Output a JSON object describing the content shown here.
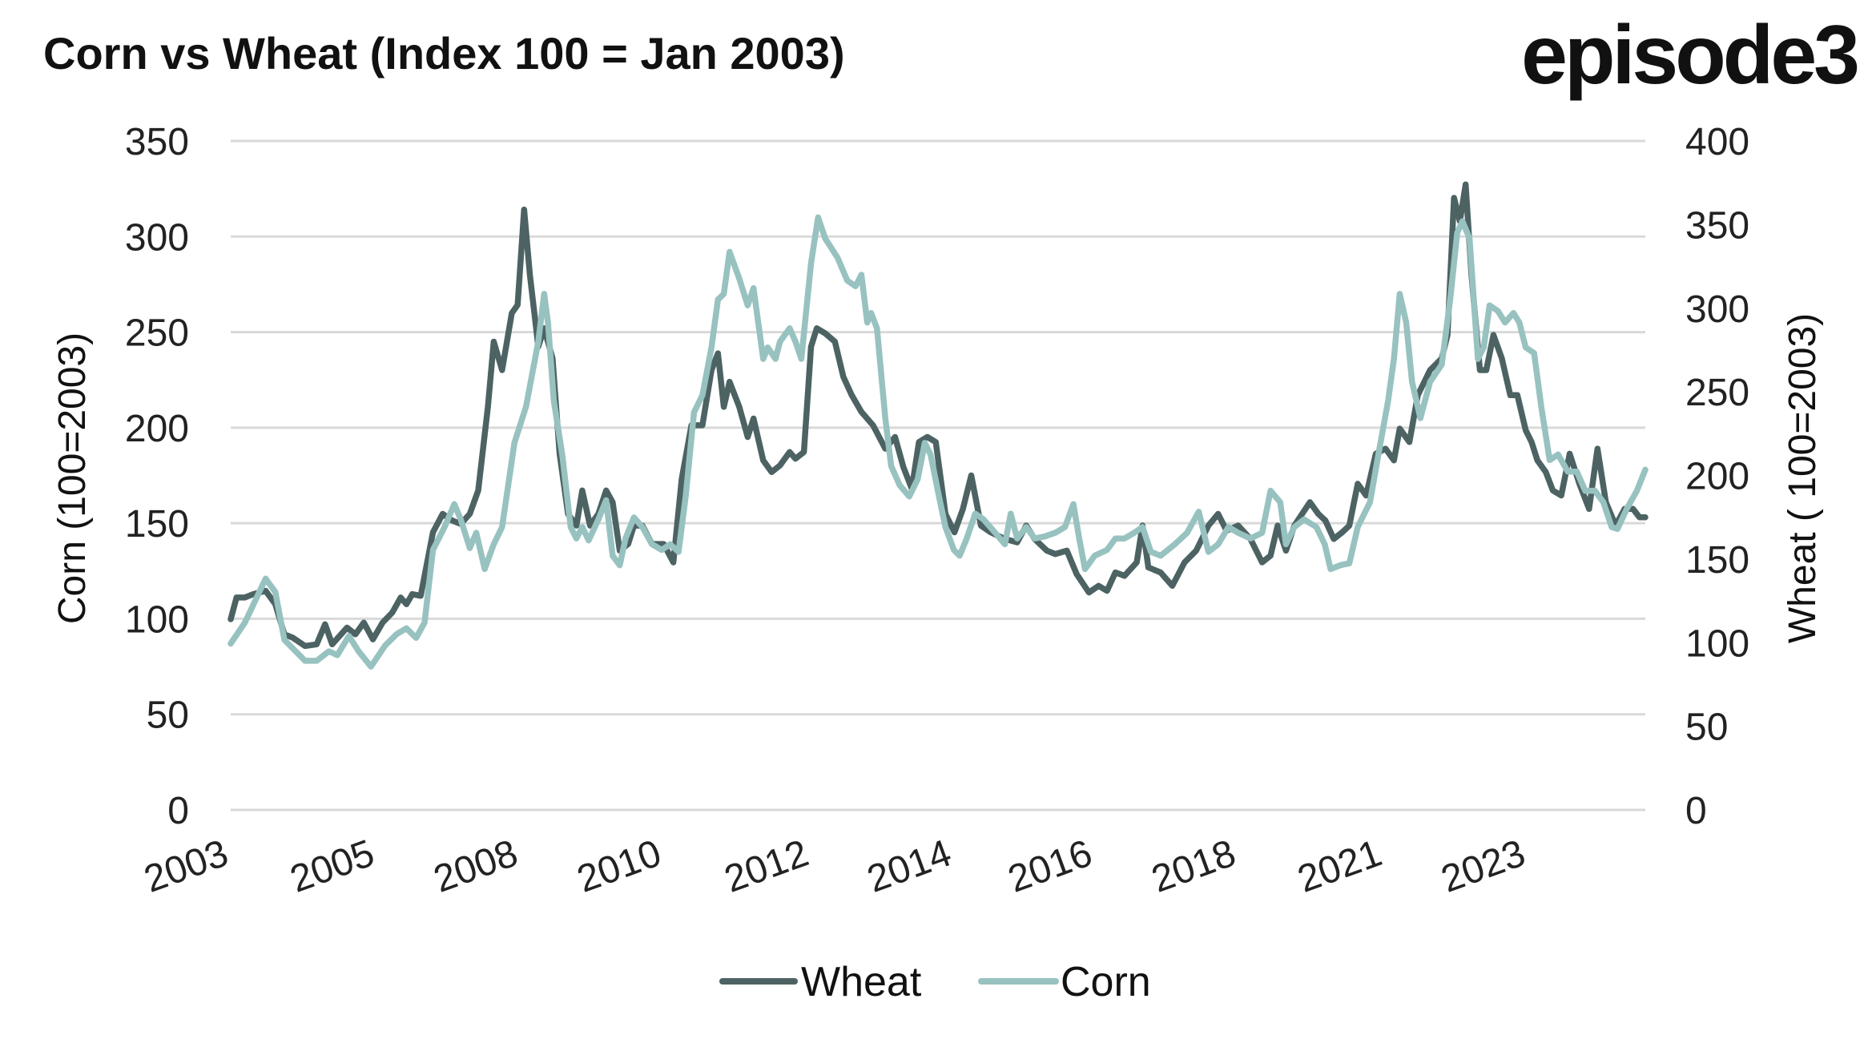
{
  "chart_data": {
    "type": "line",
    "title": "Corn vs Wheat (Index 100 = Jan 2003)",
    "logo": "episode3",
    "ylabel_left": "Corn (100=2003)",
    "ylabel_right": "Wheat ( 100=2003)",
    "ylim_left": [
      0,
      350
    ],
    "ylim_right": [
      0,
      400
    ],
    "yticks_left": [
      0,
      50,
      100,
      150,
      200,
      250,
      300,
      350
    ],
    "yticks_right": [
      0,
      50,
      100,
      150,
      200,
      250,
      300,
      350,
      400
    ],
    "xlim": [
      0,
      21.89
    ],
    "x_unit": "years since Jan 2003 (approx.)",
    "x_ticks": [
      {
        "x": 0,
        "label": "2003"
      },
      {
        "x": 2.26,
        "label": "2005"
      },
      {
        "x": 4.48,
        "label": "2008"
      },
      {
        "x": 6.7,
        "label": "2010"
      },
      {
        "x": 8.98,
        "label": "2012"
      },
      {
        "x": 11.19,
        "label": "2014"
      },
      {
        "x": 13.37,
        "label": "2016"
      },
      {
        "x": 15.59,
        "label": "2018"
      },
      {
        "x": 17.85,
        "label": "2021"
      },
      {
        "x": 20.07,
        "label": "2023"
      }
    ],
    "grid": true,
    "legend_position": "bottom-center",
    "series": [
      {
        "name": "Wheat",
        "axis": "right",
        "color": "#4d6363",
        "x": [
          0,
          0.09,
          0.22,
          0.35,
          0.54,
          0.69,
          0.83,
          0.96,
          1.15,
          1.33,
          1.46,
          1.57,
          1.8,
          1.93,
          2.06,
          2.2,
          2.35,
          2.5,
          2.63,
          2.72,
          2.81,
          2.94,
          3.13,
          3.28,
          3.43,
          3.56,
          3.7,
          3.83,
          3.98,
          4.07,
          4.2,
          4.35,
          4.44,
          4.54,
          4.63,
          4.76,
          4.85,
          4.98,
          5.09,
          5.22,
          5.35,
          5.44,
          5.56,
          5.69,
          5.81,
          5.91,
          6.02,
          6.15,
          6.24,
          6.37,
          6.52,
          6.7,
          6.85,
          6.98,
          7.13,
          7.3,
          7.44,
          7.54,
          7.63,
          7.72,
          7.87,
          8.0,
          8.09,
          8.24,
          8.37,
          8.5,
          8.65,
          8.74,
          8.87,
          8.98,
          9.07,
          9.2,
          9.35,
          9.48,
          9.61,
          9.76,
          9.94,
          10.13,
          10.28,
          10.41,
          10.54,
          10.65,
          10.78,
          10.91,
          11.06,
          11.2,
          11.33,
          11.46,
          11.61,
          11.76,
          11.98,
          12.17,
          12.31,
          12.44,
          12.63,
          12.76,
          12.94,
          13.09,
          13.28,
          13.43,
          13.56,
          13.69,
          13.83,
          14.02,
          14.11,
          14.2,
          14.39,
          14.57,
          14.76,
          14.94,
          15.13,
          15.28,
          15.41,
          15.59,
          15.78,
          15.96,
          16.09,
          16.2,
          16.33,
          16.46,
          16.7,
          16.83,
          16.94,
          17.07,
          17.2,
          17.31,
          17.44,
          17.57,
          17.72,
          17.87,
          18.0,
          18.09,
          18.24,
          18.37,
          18.56,
          18.74,
          18.83,
          18.93,
          19.02,
          19.11,
          19.2,
          19.33,
          19.43,
          19.54,
          19.67,
          19.8,
          19.91,
          20.04,
          20.13,
          20.22,
          20.35,
          20.46,
          20.59,
          20.72,
          20.87,
          21.02,
          21.15,
          21.28,
          21.43,
          21.57,
          21.7,
          21.8,
          21.89
        ],
        "y": [
          114,
          127,
          127,
          129,
          131,
          123,
          105,
          103,
          98,
          99,
          111,
          99,
          109,
          105,
          112,
          102,
          112,
          118,
          127,
          123,
          129,
          128,
          166,
          177,
          173,
          171,
          177,
          191,
          241,
          280,
          263,
          297,
          302,
          359,
          320,
          277,
          288,
          270,
          213,
          177,
          170,
          191,
          170,
          177,
          191,
          184,
          155,
          159,
          170,
          170,
          159,
          159,
          148,
          198,
          230,
          230,
          263,
          273,
          241,
          256,
          241,
          223,
          234,
          209,
          202,
          206,
          214,
          210,
          214,
          277,
          288,
          285,
          280,
          259,
          248,
          238,
          230,
          216,
          223,
          205,
          192,
          220,
          223,
          220,
          177,
          166,
          180,
          200,
          170,
          166,
          162,
          160,
          170,
          162,
          155,
          153,
          155,
          141,
          130,
          134,
          131,
          142,
          140,
          148,
          170,
          145,
          142,
          134,
          148,
          155,
          170,
          177,
          167,
          170,
          162,
          148,
          152,
          170,
          155,
          170,
          184,
          177,
          173,
          162,
          166,
          170,
          195,
          188,
          213,
          216,
          209,
          228,
          220,
          248,
          263,
          270,
          284,
          366,
          352,
          374,
          320,
          263,
          263,
          284,
          270,
          248,
          248,
          227,
          220,
          209,
          202,
          191,
          188,
          213,
          195,
          180,
          216,
          184,
          170,
          180,
          180,
          175,
          175
        ]
      },
      {
        "name": "Corn",
        "axis": "left",
        "color": "#97c2c0",
        "x": [
          0,
          0.22,
          0.54,
          0.69,
          0.83,
          1.15,
          1.33,
          1.52,
          1.65,
          1.83,
          1.98,
          2.17,
          2.39,
          2.57,
          2.72,
          2.87,
          3.0,
          3.13,
          3.31,
          3.46,
          3.56,
          3.7,
          3.8,
          3.93,
          4.07,
          4.2,
          4.39,
          4.57,
          4.76,
          4.85,
          4.91,
          5.0,
          5.13,
          5.26,
          5.35,
          5.44,
          5.54,
          5.69,
          5.81,
          5.91,
          6.02,
          6.11,
          6.24,
          6.37,
          6.52,
          6.67,
          6.8,
          6.93,
          7.04,
          7.17,
          7.3,
          7.44,
          7.54,
          7.63,
          7.72,
          7.87,
          8.0,
          8.09,
          8.24,
          8.31,
          8.43,
          8.5,
          8.65,
          8.74,
          8.83,
          8.98,
          9.09,
          9.2,
          9.39,
          9.54,
          9.67,
          9.76,
          9.85,
          9.91,
          10.0,
          10.13,
          10.22,
          10.35,
          10.5,
          10.63,
          10.74,
          10.83,
          10.96,
          11.06,
          11.19,
          11.28,
          11.39,
          11.52,
          11.65,
          11.83,
          11.98,
          12.07,
          12.17,
          12.31,
          12.44,
          12.59,
          12.76,
          12.91,
          13.04,
          13.13,
          13.22,
          13.37,
          13.56,
          13.69,
          13.83,
          13.98,
          14.11,
          14.24,
          14.39,
          14.61,
          14.8,
          14.98,
          15.13,
          15.28,
          15.44,
          15.59,
          15.78,
          15.96,
          16.09,
          16.24,
          16.33,
          16.46,
          16.61,
          16.8,
          16.93,
          17.02,
          17.17,
          17.31,
          17.44,
          17.63,
          17.76,
          17.91,
          18.0,
          18.09,
          18.19,
          18.28,
          18.41,
          18.56,
          18.74,
          18.87,
          18.98,
          19.06,
          19.17,
          19.3,
          19.39,
          19.48,
          19.61,
          19.72,
          19.85,
          19.94,
          20.04,
          20.17,
          20.28,
          20.41,
          20.54,
          20.69,
          20.83,
          20.96,
          21.11,
          21.24,
          21.37,
          21.46,
          21.61,
          21.76,
          21.89
        ],
        "y": [
          87,
          98,
          121,
          114,
          89,
          78,
          78,
          83,
          81,
          91,
          83,
          75,
          86,
          92,
          95,
          90,
          98,
          136,
          148,
          160,
          152,
          137,
          145,
          126,
          139,
          148,
          192,
          211,
          245,
          270,
          255,
          214,
          186,
          148,
          142,
          148,
          141,
          152,
          162,
          133,
          128,
          142,
          153,
          148,
          139,
          136,
          139,
          135,
          164,
          208,
          217,
          242,
          267,
          270,
          292,
          278,
          264,
          273,
          236,
          242,
          236,
          245,
          252,
          245,
          236,
          286,
          310,
          299,
          289,
          277,
          274,
          280,
          255,
          260,
          252,
          205,
          180,
          170,
          164,
          173,
          192,
          186,
          164,
          148,
          136,
          133,
          142,
          155,
          152,
          145,
          139,
          155,
          142,
          148,
          142,
          143,
          145,
          148,
          160,
          142,
          126,
          133,
          136,
          142,
          142,
          145,
          148,
          135,
          133,
          139,
          145,
          156,
          135,
          139,
          148,
          145,
          142,
          145,
          167,
          161,
          139,
          148,
          152,
          148,
          139,
          126,
          128,
          129,
          148,
          161,
          186,
          214,
          236,
          270,
          255,
          224,
          205,
          224,
          233,
          267,
          302,
          308,
          299,
          236,
          242,
          264,
          261,
          255,
          260,
          255,
          242,
          239,
          211,
          183,
          186,
          177,
          177,
          167,
          167,
          161,
          148,
          147,
          158,
          167,
          178
        ]
      }
    ]
  }
}
